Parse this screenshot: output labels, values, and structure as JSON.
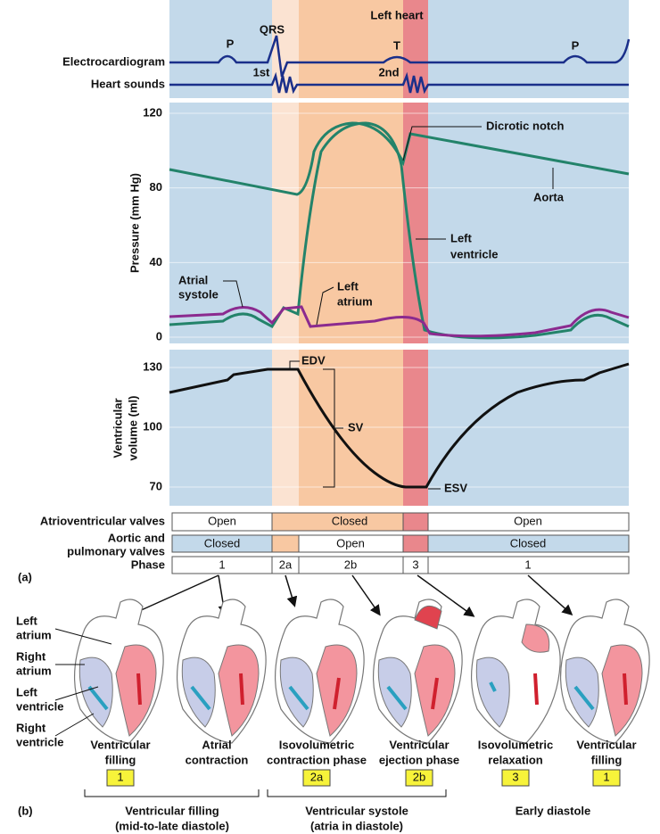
{
  "title": "Left heart",
  "ecg": {
    "label": "Electrocardiogram",
    "waves": [
      "P",
      "QRS",
      "T",
      "P"
    ]
  },
  "sounds": {
    "label": "Heart sounds",
    "marks": [
      "1st",
      "2nd"
    ]
  },
  "pressure": {
    "axis_label": "Pressure (mm Hg)",
    "ticks": [
      0,
      40,
      80,
      120
    ],
    "dicrotic_notch": "Dicrotic notch",
    "aorta": "Aorta",
    "left_ventricle": [
      "Left",
      "ventricle"
    ],
    "atrial_systole": [
      "Atrial",
      "systole"
    ],
    "left_atrium": [
      "Left",
      "atrium"
    ]
  },
  "volume": {
    "axis_label": [
      "Ventricular",
      "volume (ml)"
    ],
    "ticks": [
      70,
      100,
      130
    ],
    "edv": "EDV",
    "sv": "SV",
    "esv": "ESV"
  },
  "valves": {
    "av": {
      "label": "Atrioventricular valves",
      "cells": [
        "Open",
        "Closed",
        "Open"
      ]
    },
    "semilunar": {
      "label": [
        "Aortic and",
        "pulmonary valves"
      ],
      "cells": [
        "Closed",
        "Open",
        "Closed"
      ]
    },
    "phase": {
      "label": "Phase",
      "cells": [
        "1",
        "2a",
        "2b",
        "3",
        "1"
      ]
    }
  },
  "part_a": "(a)",
  "part_b": "(b)",
  "heart_labels": [
    [
      "Left",
      "atrium"
    ],
    [
      "Right",
      "atrium"
    ],
    [
      "Left",
      "ventricle"
    ],
    [
      "Right",
      "ventricle"
    ]
  ],
  "stages": [
    {
      "caption": [
        "Ventricular",
        "filling"
      ],
      "phase": "1"
    },
    {
      "caption": [
        "Atrial",
        "contraction"
      ],
      "phase": null
    },
    {
      "caption": [
        "Isovolumetric",
        "contraction phase"
      ],
      "phase": "2a"
    },
    {
      "caption": [
        "Ventricular",
        "ejection phase"
      ],
      "phase": "2b"
    },
    {
      "caption": [
        "Isovolumetric",
        "relaxation"
      ],
      "phase": "3"
    },
    {
      "caption": [
        "Ventricular",
        "filling"
      ],
      "phase": "1"
    }
  ],
  "groups": [
    [
      "Ventricular filling",
      "(mid-to-late diastole)"
    ],
    [
      "Ventricular systole",
      "(atria in diastole)"
    ],
    [
      "Early diastole"
    ]
  ]
}
